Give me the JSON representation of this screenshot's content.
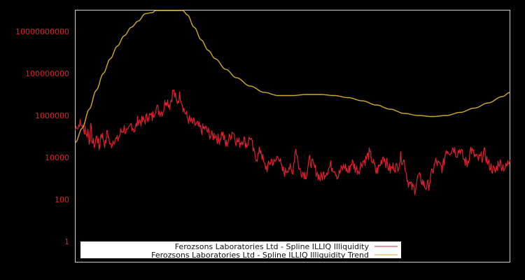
{
  "chart_data": {
    "type": "line",
    "title": "",
    "xlabel": "",
    "ylabel": "",
    "yscale": "log",
    "ylim": [
      0.3,
      100000000000000
    ],
    "y_ticks": [
      {
        "value": 1,
        "label": "1"
      },
      {
        "value": 100,
        "label": "100"
      },
      {
        "value": 10000,
        "label": "10000"
      },
      {
        "value": 1000000,
        "label": "1000000"
      },
      {
        "value": 100000000,
        "label": "100000000"
      },
      {
        "value": 10000000000,
        "label": "10000000000"
      }
    ],
    "x_ticks": [],
    "grid": false,
    "legend_position": "lower-left",
    "background": "#000000",
    "axis_color": "#cccccc",
    "tick_label_color": "#e0212e",
    "series": [
      {
        "name": "Ferozsons Laboratories Ltd - Spline ILLIQ Illiquidity",
        "color": "#e0212e",
        "x": [
          0,
          2,
          4,
          6,
          8,
          10,
          12,
          14,
          16,
          18,
          20,
          22,
          25,
          28,
          31,
          34,
          37,
          40,
          43,
          46,
          50,
          55,
          60,
          65,
          70,
          75,
          80,
          85,
          90,
          95,
          100,
          105,
          110,
          115,
          120,
          125,
          130,
          135,
          140,
          145,
          150,
          155,
          160,
          165,
          170,
          175,
          180,
          185,
          190,
          195,
          200,
          205,
          210,
          215,
          220,
          225,
          230,
          235,
          240,
          245,
          250,
          255,
          260,
          265,
          270,
          275,
          280,
          285,
          290,
          295,
          300,
          305,
          310,
          315,
          320,
          325,
          330,
          335,
          340,
          345,
          350,
          355,
          360,
          365,
          370,
          375,
          380,
          385,
          390,
          395,
          400,
          405,
          410,
          415,
          420,
          425,
          430,
          435,
          440,
          445,
          450,
          455,
          460,
          465,
          470,
          475,
          480,
          485,
          490,
          495,
          500,
          505,
          510,
          515,
          520,
          525,
          530,
          535,
          540,
          545,
          550,
          555,
          560,
          565,
          570,
          575,
          580,
          585,
          590,
          595,
          600,
          605,
          610,
          615,
          621
        ],
        "log10_values": [
          5.3,
          5.6,
          5.4,
          5.7,
          5.5,
          5.6,
          5.2,
          5.5,
          5.0,
          5.3,
          4.8,
          5.4,
          4.7,
          4.6,
          5.1,
          4.4,
          5.2,
          4.9,
          4.6,
          5.3,
          4.5,
          4.9,
          4.8,
          5.2,
          5.4,
          5.1,
          5.6,
          5.3,
          5.8,
          5.7,
          5.8,
          6.0,
          5.9,
          6.4,
          6.2,
          6.2,
          6.8,
          6.5,
          7.2,
          6.6,
          7.0,
          6.3,
          5.9,
          5.7,
          5.6,
          5.5,
          5.3,
          5.4,
          5.2,
          5.0,
          5.1,
          4.8,
          5.2,
          4.6,
          4.9,
          5.3,
          4.8,
          4.7,
          4.9,
          4.6,
          5.0,
          4.2,
          4.0,
          4.4,
          3.6,
          3.5,
          3.9,
          3.7,
          4.2,
          3.4,
          3.3,
          3.6,
          3.2,
          4.5,
          3.4,
          3.3,
          3.2,
          3.9,
          3.6,
          3.3,
          3.0,
          3.2,
          3.4,
          3.6,
          3.5,
          3.1,
          3.4,
          3.6,
          3.3,
          3.8,
          3.5,
          3.4,
          3.8,
          3.9,
          4.2,
          3.8,
          3.3,
          3.6,
          4.1,
          3.7,
          3.4,
          3.6,
          3.5,
          4.0,
          3.8,
          2.9,
          2.6,
          2.5,
          3.1,
          2.9,
          2.6,
          2.7,
          3.3,
          3.8,
          3.6,
          3.5,
          4.4,
          4.3,
          4.5,
          4.2,
          4.4,
          3.9,
          3.7,
          4.4,
          4.1,
          3.9,
          4.0,
          4.2,
          3.7,
          3.5,
          3.3,
          3.8,
          3.6,
          3.5,
          3.9
        ]
      },
      {
        "name": "Ferozsons Laboratories Ltd - Spline ILLIQ Illiquidity Trend",
        "color": "#d4a92a",
        "x": [
          0,
          10,
          20,
          30,
          40,
          50,
          60,
          70,
          80,
          90,
          100,
          110,
          120,
          130,
          140,
          150,
          160,
          170,
          180,
          190,
          200,
          215,
          230,
          250,
          270,
          290,
          310,
          330,
          350,
          370,
          390,
          410,
          430,
          450,
          470,
          490,
          510,
          530,
          550,
          570,
          590,
          610,
          621
        ],
        "log10_values": [
          4.7,
          5.4,
          6.3,
          7.2,
          8.0,
          8.7,
          9.3,
          9.8,
          10.2,
          10.5,
          10.85,
          10.9,
          11.2,
          11.4,
          11.4,
          11.2,
          10.8,
          10.2,
          9.6,
          9.1,
          8.7,
          8.2,
          7.8,
          7.4,
          7.1,
          6.95,
          6.95,
          7.0,
          7.0,
          6.95,
          6.85,
          6.7,
          6.5,
          6.3,
          6.1,
          6.0,
          5.95,
          6.0,
          6.15,
          6.35,
          6.6,
          6.9,
          7.1
        ]
      }
    ],
    "legend": [
      {
        "label": "Ferozsons Laboratories Ltd - Spline ILLIQ Illiquidity",
        "color": "#e0212e"
      },
      {
        "label": "Ferozsons Laboratories Ltd - Spline ILLIQ Illiquidity Trend",
        "color": "#d4a92a"
      }
    ]
  }
}
